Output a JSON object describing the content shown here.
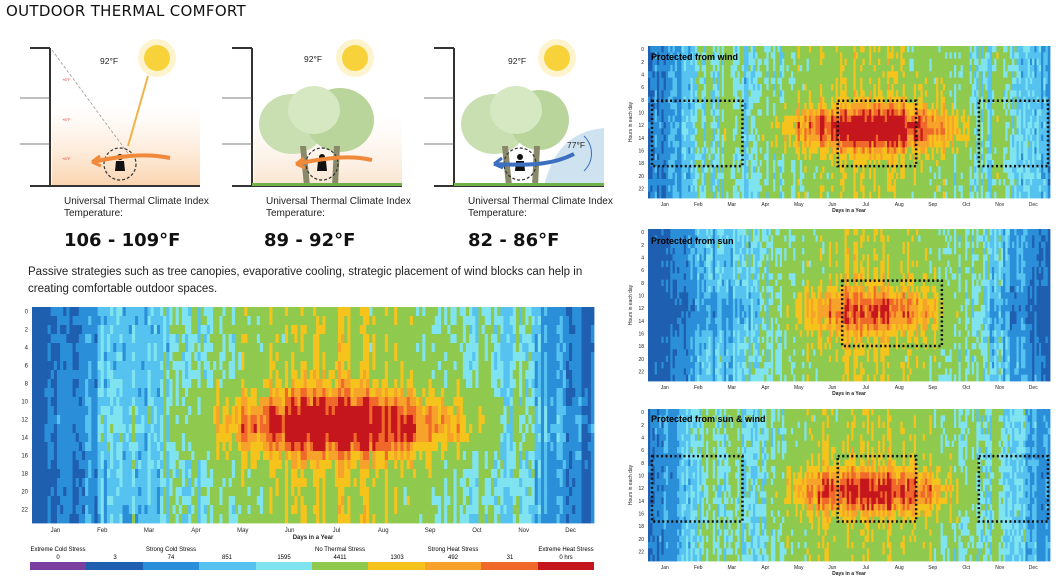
{
  "page_title": "OUTDOOR THERMAL COMFORT",
  "scenarios": [
    {
      "air_temp": "92°F",
      "label": "Universal Thermal Climate Index Temperature:",
      "range": "106 - 109°F",
      "extra_temp": ""
    },
    {
      "air_temp": "92°F",
      "label": "Universal Thermal Climate Index Temperature:",
      "range": "89 - 92°F",
      "extra_temp": ""
    },
    {
      "air_temp": "92°F",
      "label": "Universal Thermal Climate Index Temperature:",
      "range": "82 - 86°F",
      "extra_temp": "77°F"
    }
  ],
  "description": "Passive strategies such as tree canopies, evaporative cooling, strategic placement of wind blocks can help in creating comfortable outdoor spaces.",
  "colors": {
    "extreme_cold": "#7b3fa0",
    "very_strong_cold": "#1f5fb0",
    "strong_cold": "#2a8fd8",
    "moderate_cold": "#56c2f0",
    "slight_cold": "#7fe3f0",
    "no_stress": "#8fca4e",
    "moderate_heat": "#f6c31c",
    "strong_heat": "#f7a22a",
    "very_strong_heat": "#f0682a",
    "extreme_heat": "#c4161c"
  },
  "chart_data": [
    {
      "type": "heatmap",
      "id": "main",
      "title": "",
      "xlabel": "Days in a Year",
      "ylabel": "",
      "x_ticks": [
        "Jan",
        "Feb",
        "Mar",
        "Apr",
        "May",
        "Jun",
        "Jul",
        "Aug",
        "Sep",
        "Oct",
        "Nov",
        "Dec"
      ],
      "y_ticks": [
        "0",
        "2",
        "4",
        "6",
        "8",
        "10",
        "12",
        "14",
        "16",
        "18",
        "20",
        "22"
      ],
      "legend": {
        "categories": [
          "Extreme Cold Stress",
          "Strong Cold Stress",
          "No Thermal Stress",
          "Strong Heat Stress",
          "Extreme Heat Stress"
        ],
        "counts": [
          "0",
          "3",
          "74",
          "851",
          "1595",
          "4411",
          "1303",
          "492",
          "31",
          "0 hrs"
        ]
      }
    },
    {
      "type": "heatmap",
      "id": "wind",
      "title": "Protected from wind",
      "xlabel": "Days in a Year",
      "ylabel": "Hours in each day",
      "x_ticks": [
        "Jan",
        "Feb",
        "Mar",
        "Apr",
        "May",
        "Jun",
        "Jul",
        "Aug",
        "Sep",
        "Oct",
        "Nov",
        "Dec"
      ],
      "y_ticks": [
        "0",
        "2",
        "4",
        "6",
        "8",
        "10",
        "12",
        "14",
        "16",
        "18",
        "20",
        "22"
      ]
    },
    {
      "type": "heatmap",
      "id": "sun",
      "title": "Protected from sun",
      "xlabel": "Days in a Year",
      "ylabel": "Hours in each day",
      "x_ticks": [
        "Jan",
        "Feb",
        "Mar",
        "Apr",
        "May",
        "Jun",
        "Jul",
        "Aug",
        "Sep",
        "Oct",
        "Nov",
        "Dec"
      ],
      "y_ticks": [
        "0",
        "2",
        "4",
        "6",
        "8",
        "10",
        "12",
        "14",
        "16",
        "18",
        "20",
        "22"
      ]
    },
    {
      "type": "heatmap",
      "id": "sunwind",
      "title": "Protected from sun & wind",
      "xlabel": "Days in a Year",
      "ylabel": "Hours in each day",
      "x_ticks": [
        "Jan",
        "Feb",
        "Mar",
        "Apr",
        "May",
        "Jun",
        "Jul",
        "Aug",
        "Sep",
        "Oct",
        "Nov",
        "Dec"
      ],
      "y_ticks": [
        "0",
        "2",
        "4",
        "6",
        "8",
        "10",
        "12",
        "14",
        "16",
        "18",
        "20",
        "22"
      ]
    }
  ]
}
